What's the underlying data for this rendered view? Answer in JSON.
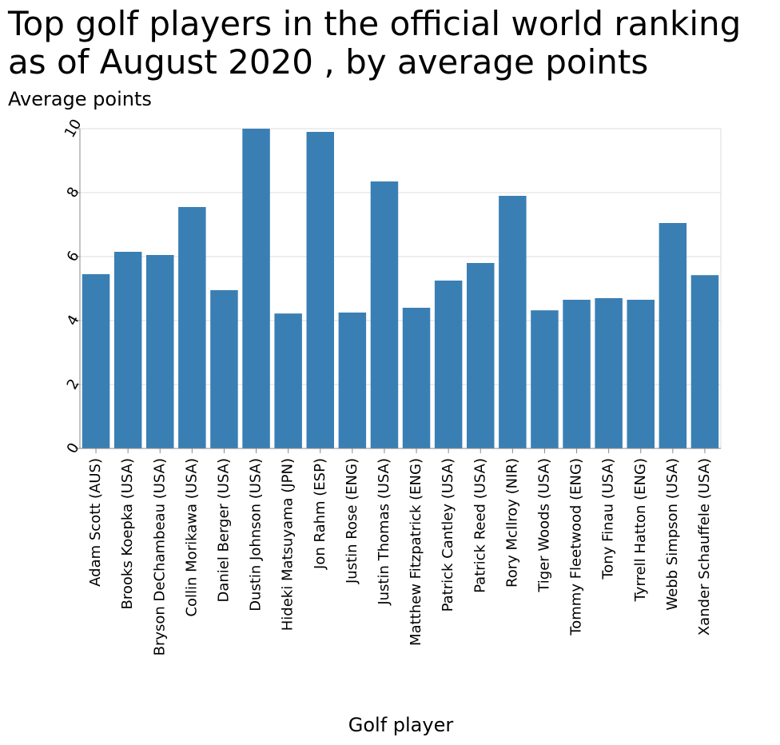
{
  "chart_data": {
    "type": "bar",
    "title": "Top golf players in the official world ranking\nas of August 2020 , by average points",
    "xlabel": "Golf player",
    "ylabel": "Average points",
    "ylim": [
      0,
      10
    ],
    "yticks": [
      0,
      2,
      4,
      6,
      8,
      10
    ],
    "grid": true,
    "bar_color": "#3a7fb4",
    "categories": [
      "Adam Scott (AUS)",
      "Brooks Koepka (USA)",
      "Bryson DeChambeau (USA)",
      "Collin Morikawa (USA)",
      "Daniel Berger (USA)",
      "Dustin Johnson (USA)",
      "Hideki Matsuyama (JPN)",
      "Jon Rahm (ESP)",
      "Justin Rose (ENG)",
      "Justin Thomas (USA)",
      "Matthew Fitzpatrick (ENG)",
      "Patrick Cantley (USA)",
      "Patrick Reed (USA)",
      "Rory McIlroy (NIR)",
      "Tiger Woods (USA)",
      "Tommy Fleetwood (ENG)",
      "Tony Finau (USA)",
      "Tyrrell Hatton (ENG)",
      "Webb Simpson (USA)",
      "Xander Schauffele (USA)"
    ],
    "values": [
      5.45,
      6.15,
      6.05,
      7.55,
      4.95,
      10.0,
      4.22,
      9.9,
      4.25,
      8.35,
      4.4,
      5.25,
      5.8,
      7.9,
      4.32,
      4.65,
      4.7,
      4.65,
      7.05,
      5.42
    ]
  }
}
